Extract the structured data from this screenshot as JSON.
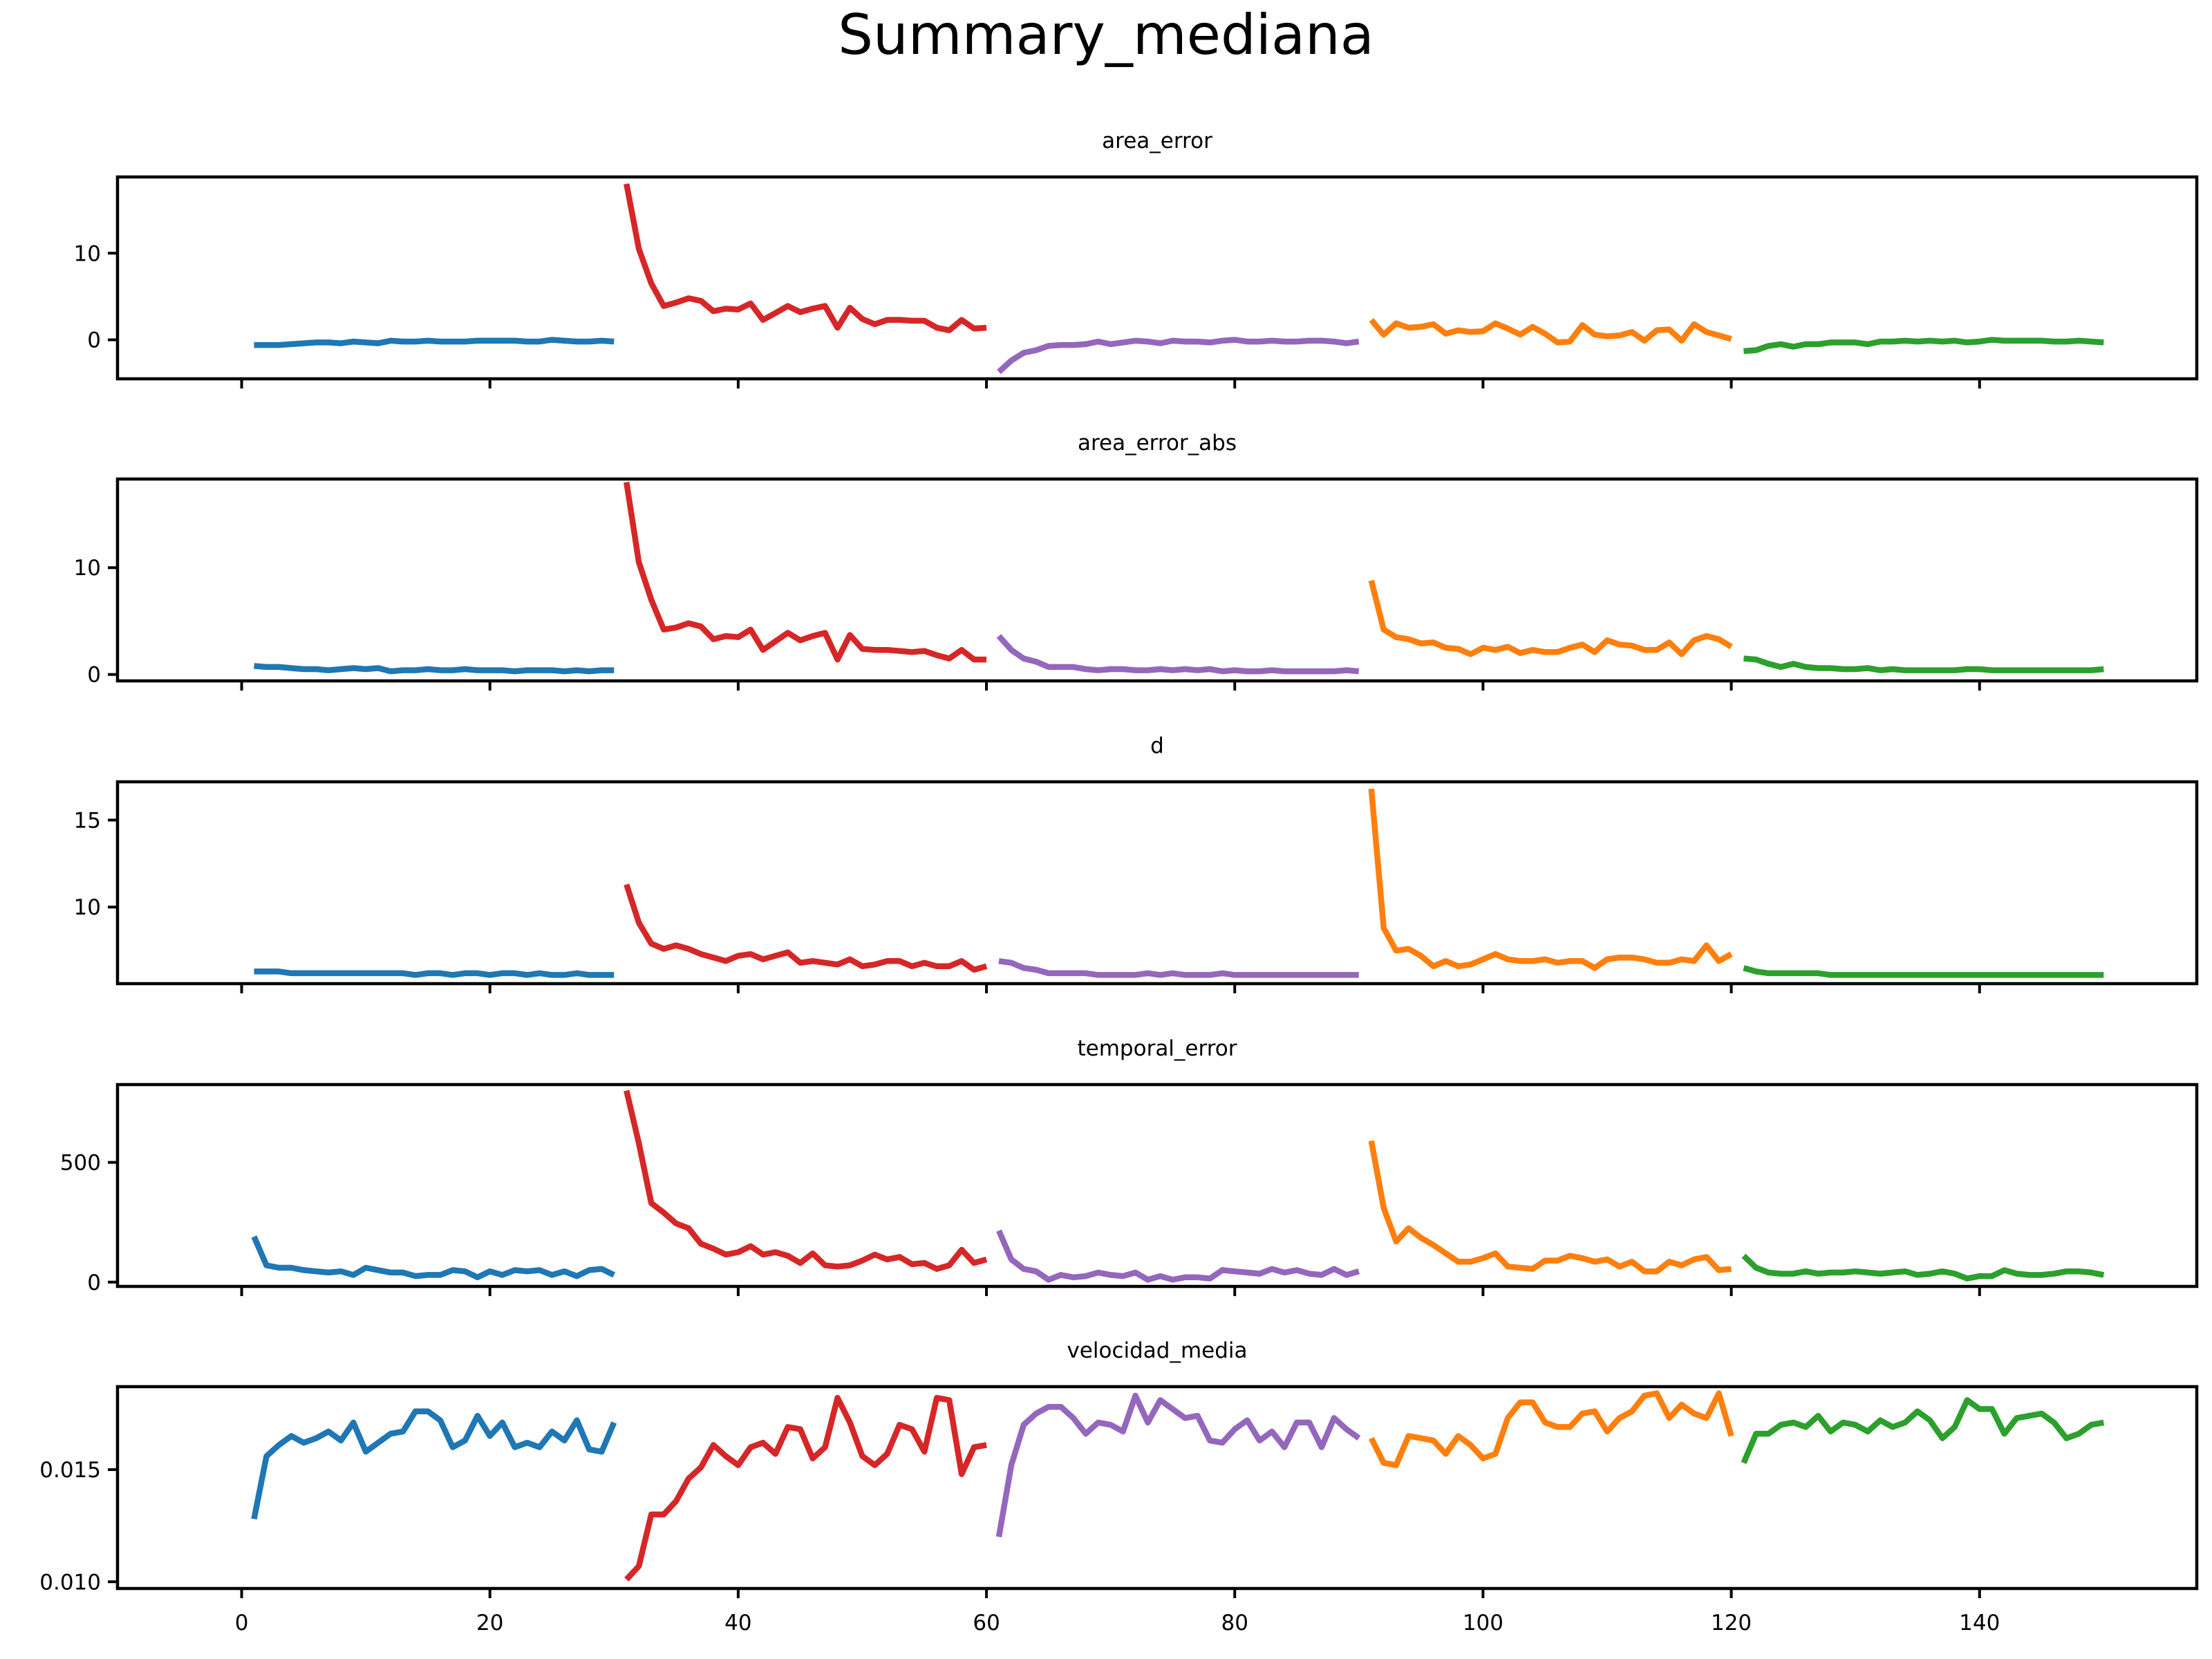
{
  "title": "Summary_mediana",
  "colors": {
    "run1": "#1f77b4",
    "run2": "#d62728",
    "run3": "#9467bd",
    "run4": "#ff7f0e",
    "run5": "#2ca02c"
  },
  "chart_data": {
    "type": "line",
    "layout": "5 stacked subplots with shared x axis",
    "xlim": [
      -10,
      157.5
    ],
    "xticks": [
      0,
      20,
      40,
      60,
      80,
      100,
      120,
      140
    ],
    "segment_colors": [
      "#1f77b4",
      "#d62728",
      "#9467bd",
      "#ff7f0e",
      "#2ca02c"
    ],
    "panels": [
      {
        "title": "area_error",
        "ylim": [
          -4.5,
          18.8
        ],
        "yticks": [
          0,
          10
        ],
        "segments": [
          {
            "x_start": 1,
            "values": [
              -0.6,
              -0.6,
              -0.6,
              -0.5,
              -0.4,
              -0.3,
              -0.3,
              -0.4,
              -0.2,
              -0.3,
              -0.4,
              -0.1,
              -0.2,
              -0.2,
              -0.1,
              -0.2,
              -0.2,
              -0.2,
              -0.1,
              -0.1,
              -0.1,
              -0.1,
              -0.2,
              -0.2,
              0.0,
              -0.1,
              -0.2,
              -0.2,
              -0.1,
              -0.2
            ]
          },
          {
            "x_start": 31,
            "values": [
              18.0,
              10.5,
              6.5,
              3.9,
              4.3,
              4.8,
              4.5,
              3.3,
              3.6,
              3.5,
              4.2,
              2.3,
              3.1,
              3.9,
              3.2,
              3.6,
              3.9,
              1.4,
              3.7,
              2.4,
              1.8,
              2.3,
              2.3,
              2.2,
              2.2,
              1.4,
              1.1,
              2.3,
              1.3,
              1.4
            ]
          },
          {
            "x_start": 61,
            "values": [
              -3.7,
              -2.4,
              -1.5,
              -1.2,
              -0.7,
              -0.6,
              -0.6,
              -0.5,
              -0.2,
              -0.5,
              -0.3,
              -0.1,
              -0.2,
              -0.4,
              -0.1,
              -0.2,
              -0.2,
              -0.3,
              -0.1,
              0.0,
              -0.2,
              -0.2,
              -0.1,
              -0.2,
              -0.2,
              -0.1,
              -0.1,
              -0.2,
              -0.4,
              -0.2
            ]
          },
          {
            "x_start": 91,
            "values": [
              2.3,
              0.6,
              1.9,
              1.4,
              1.5,
              1.8,
              0.7,
              1.1,
              0.9,
              1.0,
              1.9,
              1.3,
              0.6,
              1.5,
              0.7,
              -0.3,
              -0.2,
              1.7,
              0.6,
              0.4,
              0.5,
              0.9,
              -0.1,
              1.1,
              1.2,
              -0.1,
              1.8,
              0.9,
              0.5,
              0.1
            ]
          },
          {
            "x_start": 121,
            "values": [
              -1.3,
              -1.2,
              -0.7,
              -0.5,
              -0.8,
              -0.5,
              -0.5,
              -0.3,
              -0.3,
              -0.3,
              -0.5,
              -0.2,
              -0.2,
              -0.1,
              -0.2,
              -0.1,
              -0.2,
              -0.1,
              -0.3,
              -0.2,
              0.0,
              -0.1,
              -0.1,
              -0.1,
              -0.1,
              -0.2,
              -0.2,
              -0.1,
              -0.2,
              -0.3
            ]
          }
        ]
      },
      {
        "title": "area_error_abs",
        "ylim": [
          -0.6,
          18.3
        ],
        "yticks": [
          0,
          10
        ],
        "segments": [
          {
            "x_start": 1,
            "values": [
              0.8,
              0.7,
              0.7,
              0.6,
              0.5,
              0.5,
              0.4,
              0.5,
              0.6,
              0.5,
              0.6,
              0.3,
              0.4,
              0.4,
              0.5,
              0.4,
              0.4,
              0.5,
              0.4,
              0.4,
              0.4,
              0.3,
              0.4,
              0.4,
              0.4,
              0.3,
              0.4,
              0.3,
              0.4,
              0.4
            ]
          },
          {
            "x_start": 31,
            "values": [
              18.0,
              10.5,
              7.0,
              4.2,
              4.4,
              4.8,
              4.5,
              3.3,
              3.6,
              3.5,
              4.2,
              2.3,
              3.1,
              3.9,
              3.2,
              3.6,
              3.9,
              1.4,
              3.7,
              2.4,
              2.3,
              2.3,
              2.2,
              2.1,
              2.2,
              1.8,
              1.5,
              2.3,
              1.4,
              1.4
            ]
          },
          {
            "x_start": 61,
            "values": [
              3.6,
              2.3,
              1.5,
              1.2,
              0.7,
              0.7,
              0.7,
              0.5,
              0.4,
              0.5,
              0.5,
              0.4,
              0.4,
              0.5,
              0.4,
              0.5,
              0.4,
              0.5,
              0.3,
              0.4,
              0.3,
              0.3,
              0.4,
              0.3,
              0.3,
              0.3,
              0.3,
              0.3,
              0.4,
              0.3
            ]
          },
          {
            "x_start": 91,
            "values": [
              8.8,
              4.2,
              3.5,
              3.3,
              2.9,
              3.0,
              2.5,
              2.4,
              1.9,
              2.5,
              2.3,
              2.6,
              2.0,
              2.3,
              2.1,
              2.1,
              2.5,
              2.8,
              2.1,
              3.2,
              2.8,
              2.7,
              2.3,
              2.3,
              3.0,
              1.9,
              3.2,
              3.6,
              3.3,
              2.6
            ]
          },
          {
            "x_start": 121,
            "values": [
              1.5,
              1.4,
              1.0,
              0.7,
              1.0,
              0.7,
              0.6,
              0.6,
              0.5,
              0.5,
              0.6,
              0.4,
              0.5,
              0.4,
              0.4,
              0.4,
              0.4,
              0.4,
              0.5,
              0.5,
              0.4,
              0.4,
              0.4,
              0.4,
              0.4,
              0.4,
              0.4,
              0.4,
              0.4,
              0.5
            ]
          }
        ]
      },
      {
        "title": "d",
        "ylim": [
          5.6,
          17.2
        ],
        "yticks": [
          10,
          15
        ],
        "segments": [
          {
            "x_start": 1,
            "values": [
              6.3,
              6.3,
              6.3,
              6.2,
              6.2,
              6.2,
              6.2,
              6.2,
              6.2,
              6.2,
              6.2,
              6.2,
              6.2,
              6.1,
              6.2,
              6.2,
              6.1,
              6.2,
              6.2,
              6.1,
              6.2,
              6.2,
              6.1,
              6.2,
              6.1,
              6.1,
              6.2,
              6.1,
              6.1,
              6.1
            ]
          },
          {
            "x_start": 31,
            "values": [
              11.3,
              9.1,
              7.9,
              7.6,
              7.8,
              7.6,
              7.3,
              7.1,
              6.9,
              7.2,
              7.3,
              7.0,
              7.2,
              7.4,
              6.8,
              6.9,
              6.8,
              6.7,
              7.0,
              6.6,
              6.7,
              6.9,
              6.9,
              6.6,
              6.8,
              6.6,
              6.6,
              6.9,
              6.4,
              6.6
            ]
          },
          {
            "x_start": 61,
            "values": [
              6.9,
              6.8,
              6.5,
              6.4,
              6.2,
              6.2,
              6.2,
              6.2,
              6.1,
              6.1,
              6.1,
              6.1,
              6.2,
              6.1,
              6.2,
              6.1,
              6.1,
              6.1,
              6.2,
              6.1,
              6.1,
              6.1,
              6.1,
              6.1,
              6.1,
              6.1,
              6.1,
              6.1,
              6.1,
              6.1
            ]
          },
          {
            "x_start": 91,
            "values": [
              16.8,
              8.8,
              7.5,
              7.6,
              7.2,
              6.6,
              6.9,
              6.6,
              6.7,
              7.0,
              7.3,
              7.0,
              6.9,
              6.9,
              7.0,
              6.8,
              6.9,
              6.9,
              6.5,
              7.0,
              7.1,
              7.1,
              7.0,
              6.8,
              6.8,
              7.0,
              6.9,
              7.8,
              6.9,
              7.3
            ]
          },
          {
            "x_start": 121,
            "values": [
              6.5,
              6.3,
              6.2,
              6.2,
              6.2,
              6.2,
              6.2,
              6.1,
              6.1,
              6.1,
              6.1,
              6.1,
              6.1,
              6.1,
              6.1,
              6.1,
              6.1,
              6.1,
              6.1,
              6.1,
              6.1,
              6.1,
              6.1,
              6.1,
              6.1,
              6.1,
              6.1,
              6.1,
              6.1,
              6.1
            ]
          }
        ]
      },
      {
        "title": "temporal_error",
        "ylim": [
          -18,
          825
        ],
        "yticks": [
          0,
          500
        ],
        "segments": [
          {
            "x_start": 1,
            "values": [
              190,
              70,
              60,
              60,
              50,
              45,
              40,
              45,
              30,
              60,
              50,
              40,
              40,
              25,
              30,
              30,
              50,
              45,
              20,
              45,
              30,
              50,
              45,
              50,
              30,
              45,
              25,
              50,
              55,
              30
            ]
          },
          {
            "x_start": 31,
            "values": [
              800,
              580,
              330,
              290,
              245,
              225,
              160,
              140,
              115,
              125,
              150,
              115,
              125,
              110,
              80,
              120,
              70,
              65,
              70,
              90,
              115,
              95,
              105,
              75,
              80,
              55,
              70,
              135,
              80,
              95
            ]
          },
          {
            "x_start": 61,
            "values": [
              215,
              95,
              55,
              45,
              10,
              30,
              20,
              25,
              40,
              30,
              25,
              40,
              10,
              25,
              10,
              20,
              20,
              15,
              50,
              45,
              40,
              35,
              55,
              40,
              50,
              35,
              30,
              55,
              30,
              45
            ]
          },
          {
            "x_start": 91,
            "values": [
              590,
              310,
              170,
              225,
              185,
              155,
              120,
              85,
              85,
              100,
              120,
              65,
              60,
              55,
              90,
              90,
              110,
              100,
              85,
              95,
              65,
              85,
              45,
              45,
              85,
              70,
              95,
              105,
              50,
              55
            ]
          },
          {
            "x_start": 121,
            "values": [
              110,
              60,
              40,
              35,
              35,
              45,
              35,
              40,
              40,
              45,
              40,
              35,
              40,
              45,
              30,
              35,
              45,
              35,
              15,
              25,
              25,
              50,
              35,
              30,
              30,
              35,
              45,
              45,
              40,
              30
            ]
          }
        ]
      },
      {
        "title": "velocidad_media",
        "ylim": [
          0.0097,
          0.0187
        ],
        "yticks": [
          0.01,
          0.015
        ],
        "ytick_labels": [
          "0.010",
          "0.015"
        ],
        "segments": [
          {
            "x_start": 1,
            "values": [
              0.0128,
              0.0156,
              0.0161,
              0.0165,
              0.0162,
              0.0164,
              0.0167,
              0.0163,
              0.0171,
              0.0158,
              0.0162,
              0.0166,
              0.0167,
              0.0176,
              0.0176,
              0.0172,
              0.016,
              0.0163,
              0.0174,
              0.0165,
              0.0171,
              0.016,
              0.0162,
              0.016,
              0.0167,
              0.0163,
              0.0172,
              0.0159,
              0.0158,
              0.0171
            ]
          },
          {
            "x_start": 31,
            "values": [
              0.0101,
              0.0107,
              0.013,
              0.013,
              0.0136,
              0.0146,
              0.0151,
              0.0161,
              0.0156,
              0.0152,
              0.016,
              0.0162,
              0.0157,
              0.0169,
              0.0168,
              0.0155,
              0.016,
              0.0182,
              0.0171,
              0.0156,
              0.0152,
              0.0157,
              0.017,
              0.0168,
              0.0158,
              0.0182,
              0.0181,
              0.0148,
              0.016,
              0.0161
            ]
          },
          {
            "x_start": 61,
            "values": [
              0.012,
              0.0152,
              0.017,
              0.0175,
              0.0178,
              0.0178,
              0.0173,
              0.0166,
              0.0171,
              0.017,
              0.0167,
              0.0183,
              0.0171,
              0.0181,
              0.0177,
              0.0173,
              0.0174,
              0.0163,
              0.0162,
              0.0168,
              0.0172,
              0.0163,
              0.0167,
              0.016,
              0.0171,
              0.0171,
              0.016,
              0.0173,
              0.0168,
              0.0164
            ]
          },
          {
            "x_start": 91,
            "values": [
              0.0164,
              0.0153,
              0.0152,
              0.0165,
              0.0164,
              0.0163,
              0.0157,
              0.0165,
              0.0161,
              0.0155,
              0.0157,
              0.0173,
              0.018,
              0.018,
              0.0171,
              0.0169,
              0.0169,
              0.0175,
              0.0176,
              0.0167,
              0.0173,
              0.0176,
              0.0183,
              0.0184,
              0.0173,
              0.0179,
              0.0175,
              0.0173,
              0.0184,
              0.0165
            ]
          },
          {
            "x_start": 121,
            "values": [
              0.0153,
              0.0166,
              0.0166,
              0.017,
              0.0171,
              0.0169,
              0.0174,
              0.0167,
              0.0171,
              0.017,
              0.0167,
              0.0172,
              0.0169,
              0.0171,
              0.0176,
              0.0172,
              0.0164,
              0.0169,
              0.0181,
              0.0177,
              0.0177,
              0.0166,
              0.0173,
              0.0174,
              0.0175,
              0.0171,
              0.0164,
              0.0166,
              0.017,
              0.0171
            ]
          }
        ]
      }
    ]
  }
}
